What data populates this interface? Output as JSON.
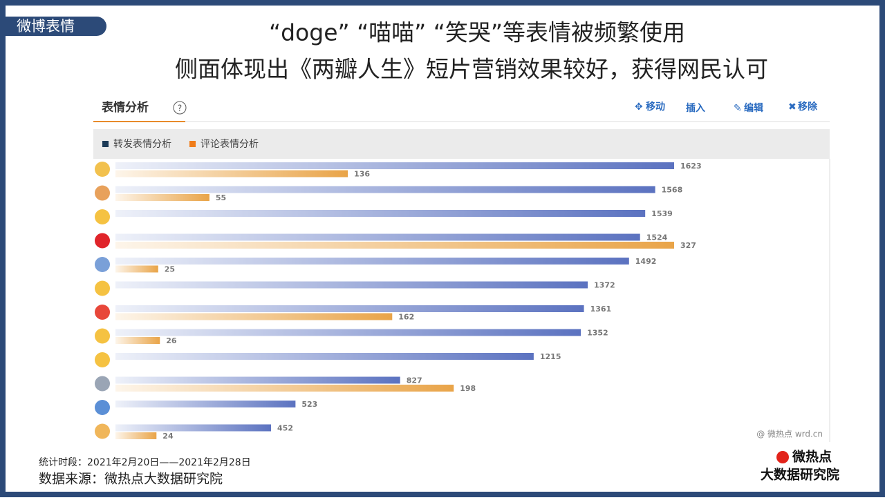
{
  "slide_tag": "微博表情",
  "title_lines": [
    "“doge”  “喵喵”  “笑哭”等表情被频繁使用",
    "侧面体现出《两瓣人生》短片营销效果较好，获得网民认可"
  ],
  "widget": {
    "title": "表情分析",
    "help": "?",
    "buttons": [
      "移动",
      "插入",
      "编辑",
      "移除"
    ],
    "watermark": "@ 微热点  wrd.cn"
  },
  "chart_data": {
    "type": "hbar",
    "categories": [
      null,
      null,
      null,
      null,
      null,
      null,
      null,
      null,
      null,
      null,
      null,
      null
    ],
    "series": [
      {
        "name": "转发表情分析",
        "color": "#1b3a57",
        "values": [
          1623,
          1568,
          1539,
          1524,
          1492,
          1372,
          1361,
          1352,
          1215,
          827,
          523,
          452
        ]
      },
      {
        "name": "评论表情分析",
        "color": "#f07d1a",
        "values": [
          136,
          55,
          null,
          327,
          25,
          null,
          162,
          26,
          null,
          198,
          null,
          24
        ]
      }
    ]
  },
  "footer": {
    "period": "统计时段：2021年2月20日——2021年2月28日",
    "source": "数据来源：微热点大数据研究院"
  },
  "logo": {
    "top": "微热点",
    "bottom": "大数据研究院"
  }
}
